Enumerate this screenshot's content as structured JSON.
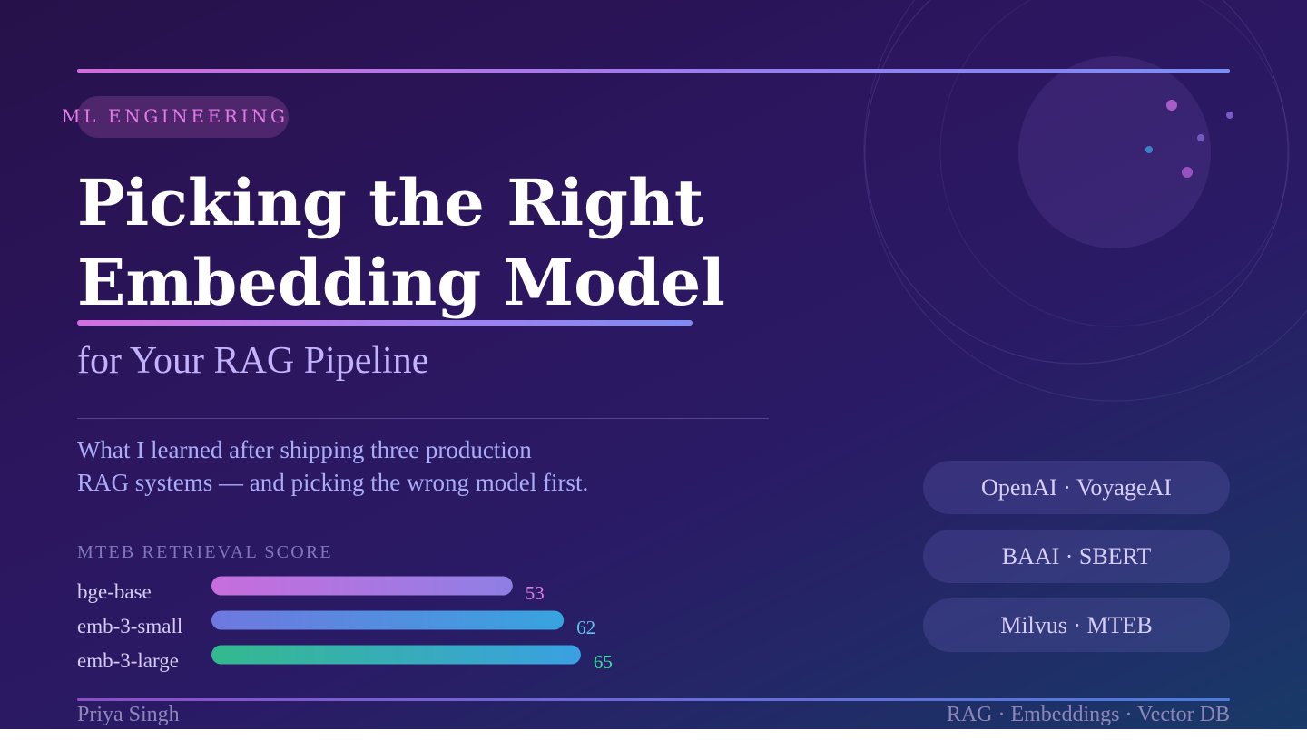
{
  "kicker": "ML ENGINEERING",
  "title": {
    "line1": "Picking the Right",
    "line2": "Embedding Model"
  },
  "subtitle": "for Your RAG Pipeline",
  "lead": {
    "line1": "What I learned after shipping three production",
    "line2": "RAG systems — and picking the wrong model first."
  },
  "tags": [
    "OpenAI · VoyageAI",
    "BAAI · SBERT",
    "Milvus · MTEB"
  ],
  "footer": {
    "author": "Priya Singh",
    "topics": "RAG · Embeddings · Vector DB"
  },
  "colors": {
    "pink": "#e07be6",
    "blue": "#5fc3f0",
    "green": "#3fd9a0",
    "title": "#ffffff",
    "subtitle": "#c3b3ff"
  },
  "chart_data": {
    "type": "bar",
    "orientation": "horizontal",
    "title": "MTEB RETRIEVAL SCORE",
    "categories": [
      "bge-base",
      "emb-3-small",
      "emb-3-large"
    ],
    "values": [
      53,
      62,
      65
    ],
    "value_colors": [
      "#e07be6",
      "#5fc3f0",
      "#3fd9a0"
    ],
    "bar_gradients": [
      [
        "#c86ddd",
        "#8e7fe4"
      ],
      [
        "#6f78df",
        "#37a4df"
      ],
      [
        "#34b98e",
        "#3aa0e2"
      ]
    ],
    "xlim": [
      0,
      65
    ],
    "grid": false
  }
}
